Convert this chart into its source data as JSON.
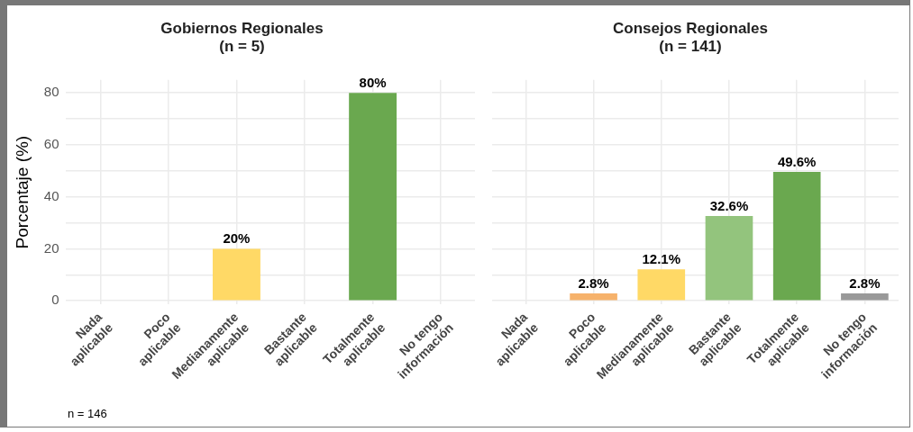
{
  "chart_data": [
    {
      "type": "bar",
      "title": "Gobiernos Regionales",
      "subtitle": "(n = 5)",
      "ylabel": "Porcentaje (%)",
      "categories": [
        "Nada\naplicable",
        "Poco\naplicable",
        "Medianamente\naplicable",
        "Bastante\naplicable",
        "Totalmente\naplicable",
        "No tengo\ninformación"
      ],
      "values": [
        0,
        0,
        20,
        0,
        80,
        0
      ],
      "colors": [
        "#e06666",
        "#f6b26b",
        "#ffd966",
        "#93c47d",
        "#6aa84f",
        "#999999"
      ],
      "value_labels": [
        null,
        null,
        "20%",
        null,
        "80%",
        null
      ],
      "ylim": [
        -1.5,
        85
      ],
      "yticks": [
        0,
        {
          "value": 10,
          "label": null
        },
        20,
        {
          "value": 30,
          "label": null
        },
        40,
        {
          "value": 50,
          "label": null
        },
        60,
        {
          "value": 70,
          "label": null
        },
        80
      ],
      "grid": true,
      "annotations": [
        "n = 146"
      ]
    },
    {
      "type": "bar",
      "title": "Consejos Regionales",
      "subtitle": "(n = 141)",
      "categories": [
        "Nada\naplicable",
        "Poco\naplicable",
        "Medianamente\naplicable",
        "Bastante\naplicable",
        "Totalmente\naplicable",
        "No tengo\ninformación"
      ],
      "values": [
        0,
        2.8,
        12.1,
        32.6,
        49.6,
        2.8
      ],
      "colors": [
        "#e06666",
        "#f6b26b",
        "#ffd966",
        "#93c47d",
        "#6aa84f",
        "#999999"
      ],
      "value_labels": [
        null,
        "2.8%",
        "12.1%",
        "32.6%",
        "49.6%",
        "2.8%"
      ],
      "ylim": [
        -1.5,
        85
      ],
      "yticks": [
        0,
        {
          "value": 10,
          "label": null
        },
        20,
        {
          "value": 30,
          "label": null
        },
        40,
        {
          "value": 50,
          "label": null
        },
        60,
        {
          "value": 70,
          "label": null
        },
        80
      ],
      "grid": true,
      "tick_labels": "x"
    }
  ]
}
